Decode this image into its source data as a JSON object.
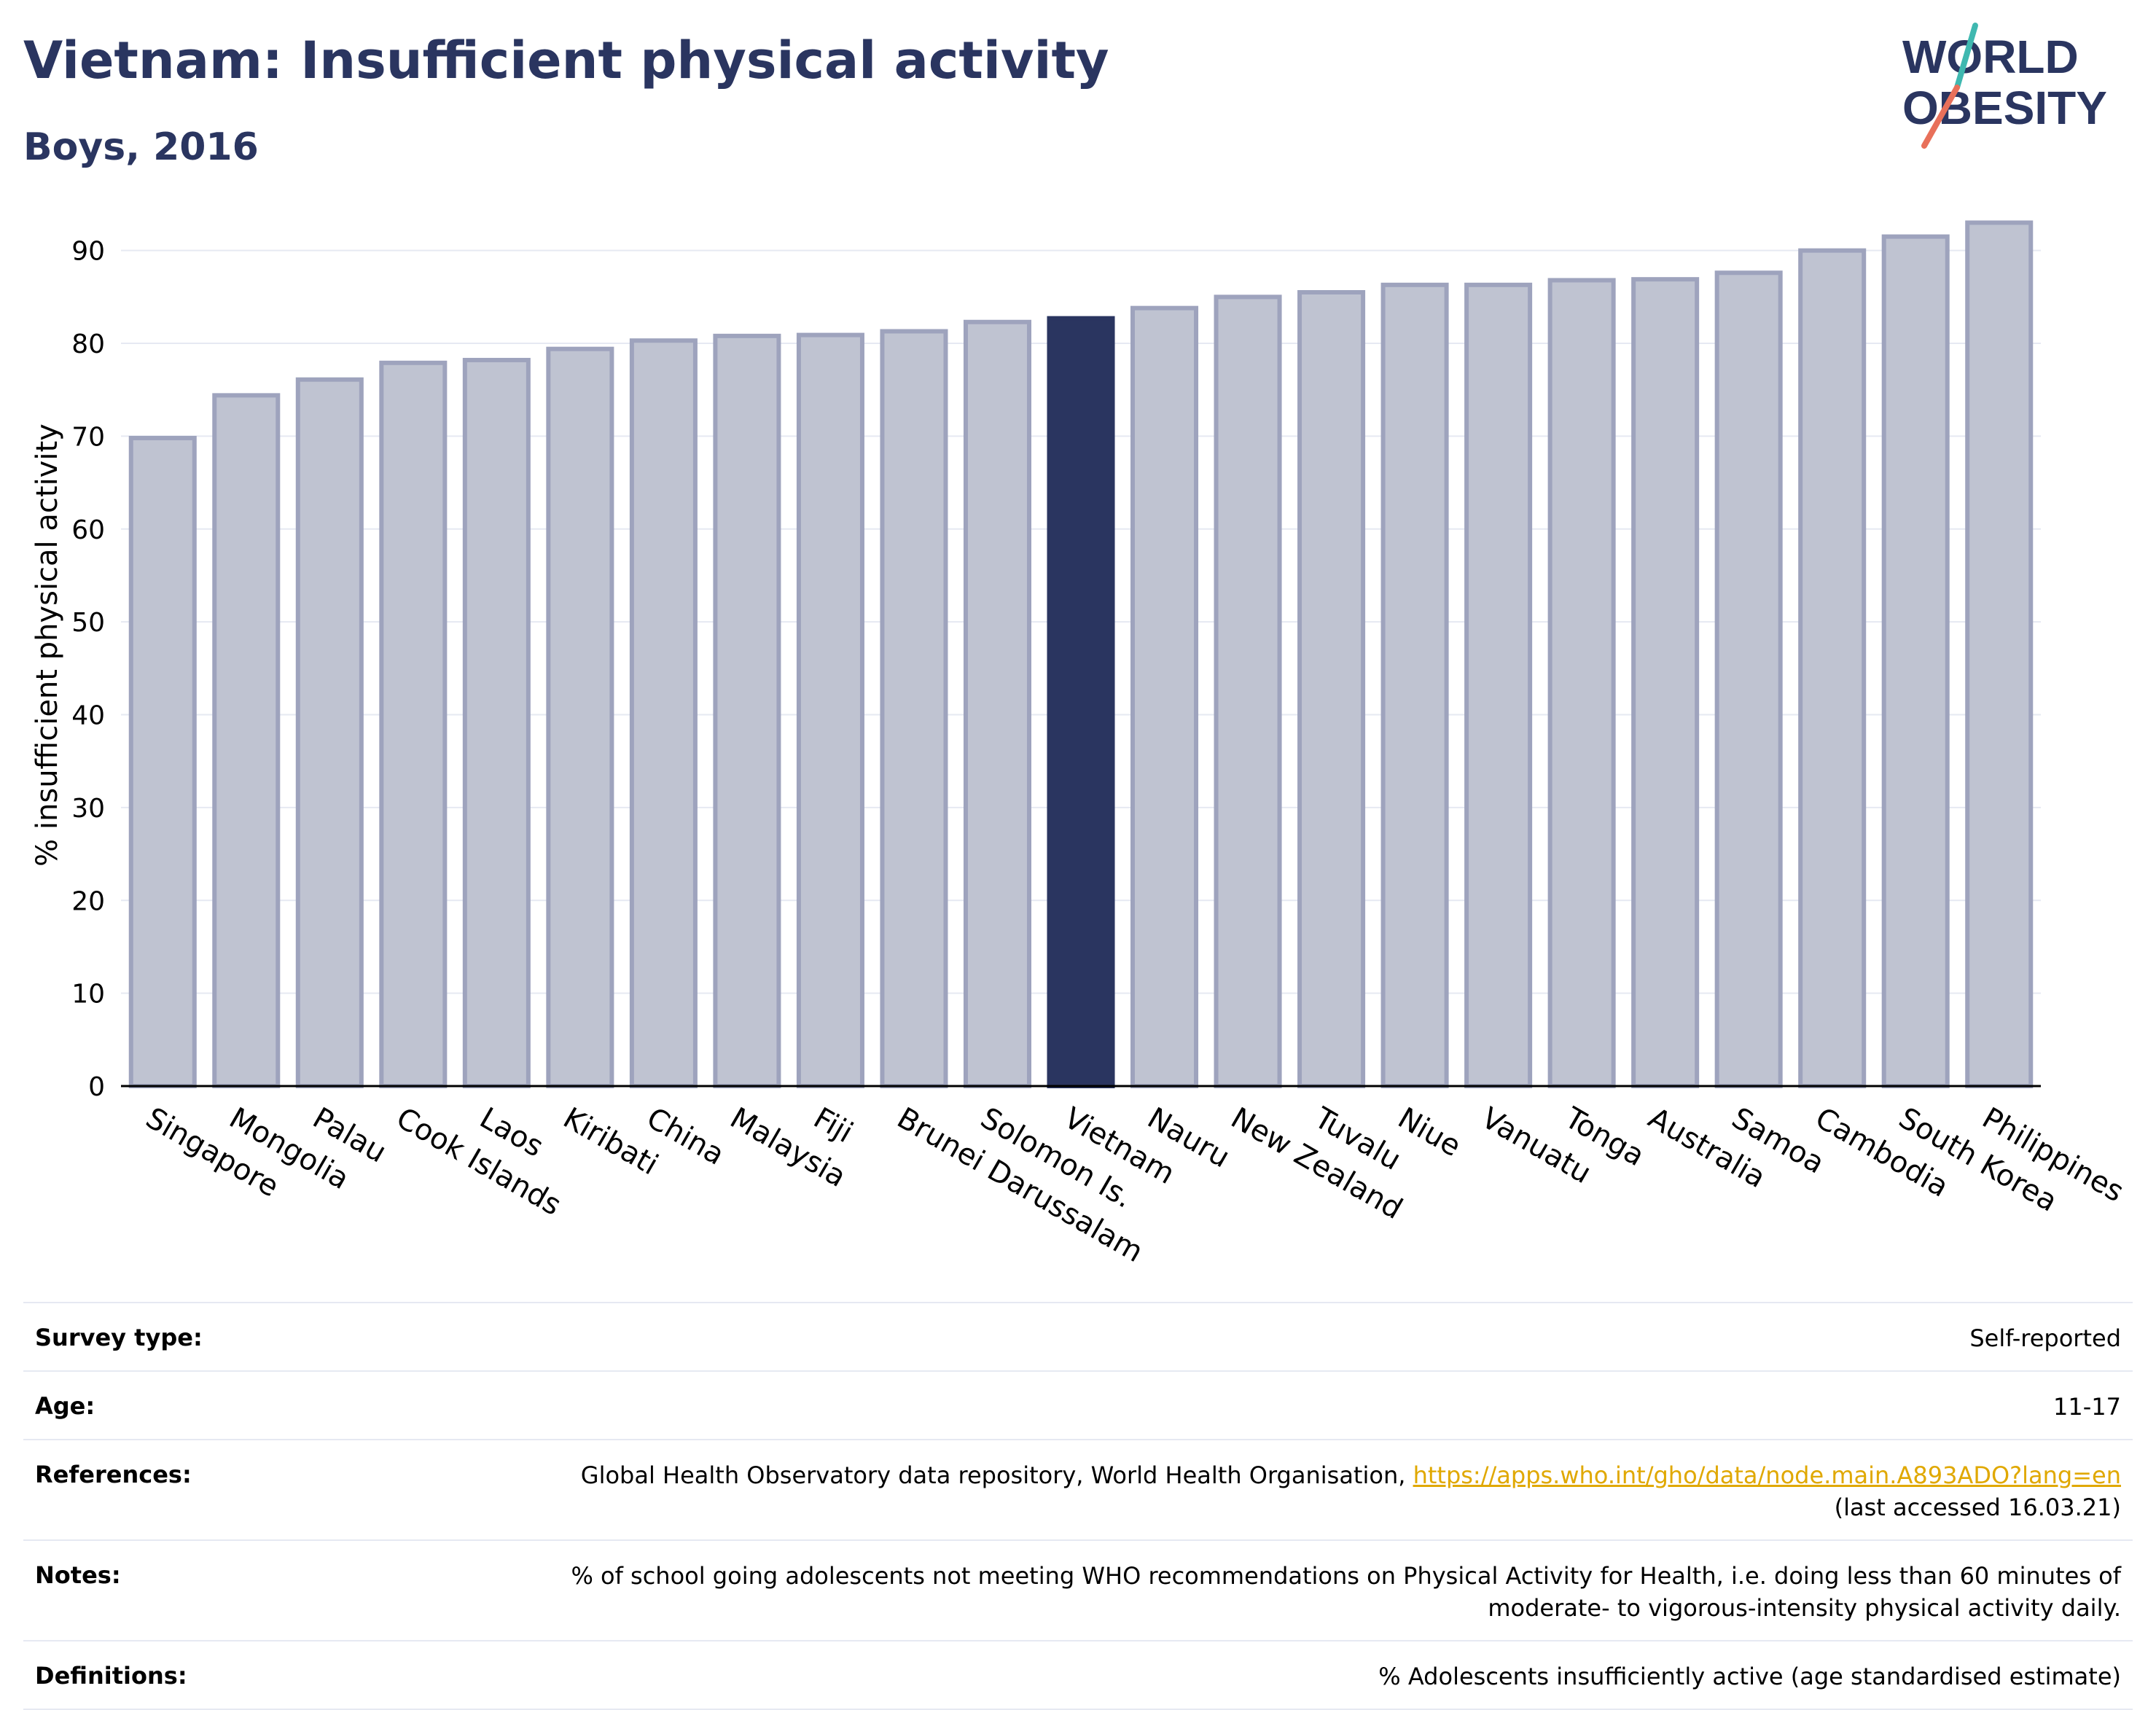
{
  "header": {
    "title": "Vietnam: Insufficient physical activity",
    "subtitle": "Boys, 2016"
  },
  "logo": {
    "line1": "WORLD",
    "line2": "OBESITY",
    "slash_colors": [
      "#3fb8b0",
      "#e8705a"
    ],
    "text_color": "#2a3560"
  },
  "chart_data": {
    "type": "bar",
    "categories": [
      "Singapore",
      "Mongolia",
      "Palau",
      "Cook Islands",
      "Laos",
      "Kiribati",
      "China",
      "Malaysia",
      "Fiji",
      "Brunei Darussalam",
      "Solomon Is.",
      "Vietnam",
      "Nauru",
      "New Zealand",
      "Tuvalu",
      "Niue",
      "Vanuatu",
      "Tonga",
      "Australia",
      "Samoa",
      "Cambodia",
      "South Korea",
      "Philippines"
    ],
    "values": [
      69.8,
      74.4,
      76.1,
      77.9,
      78.2,
      79.4,
      80.3,
      80.8,
      80.9,
      81.3,
      82.3,
      82.7,
      83.8,
      85.0,
      85.5,
      86.3,
      86.3,
      86.8,
      86.9,
      87.6,
      90.0,
      91.5,
      93.0
    ],
    "highlight": "Vietnam",
    "title": "",
    "xlabel": "",
    "ylabel": "% insufficient physical activity",
    "ylim": [
      0,
      95
    ],
    "yticks": [
      0,
      10,
      20,
      30,
      40,
      50,
      60,
      70,
      80,
      90
    ],
    "grid": true,
    "legend": "none",
    "colors": {
      "bar": "#bfc3d1",
      "bar_edge": "#9ea3bd",
      "highlight": "#2a3560",
      "grid": "#e6e9f2",
      "axis": "#000000"
    }
  },
  "info": [
    {
      "label": "Survey type:",
      "value": "Self-reported"
    },
    {
      "label": "Age:",
      "value": "11-17"
    },
    {
      "label": "References:",
      "value": "Global Health Observatory data repository, World Health Organisation, ",
      "link": "https://apps.who.int/gho/data/node.main.A893ADO?lang=en",
      "value2": "(last accessed 16.03.21)"
    },
    {
      "label": "Notes:",
      "value": "% of school going adolescents not meeting WHO recommendations on Physical Activity for Health, i.e. doing less than 60 minutes of moderate- to vigorous-intensity physical activity daily."
    },
    {
      "label": "Definitions:",
      "value": "% Adolescents insufficiently active (age standardised estimate)"
    }
  ]
}
